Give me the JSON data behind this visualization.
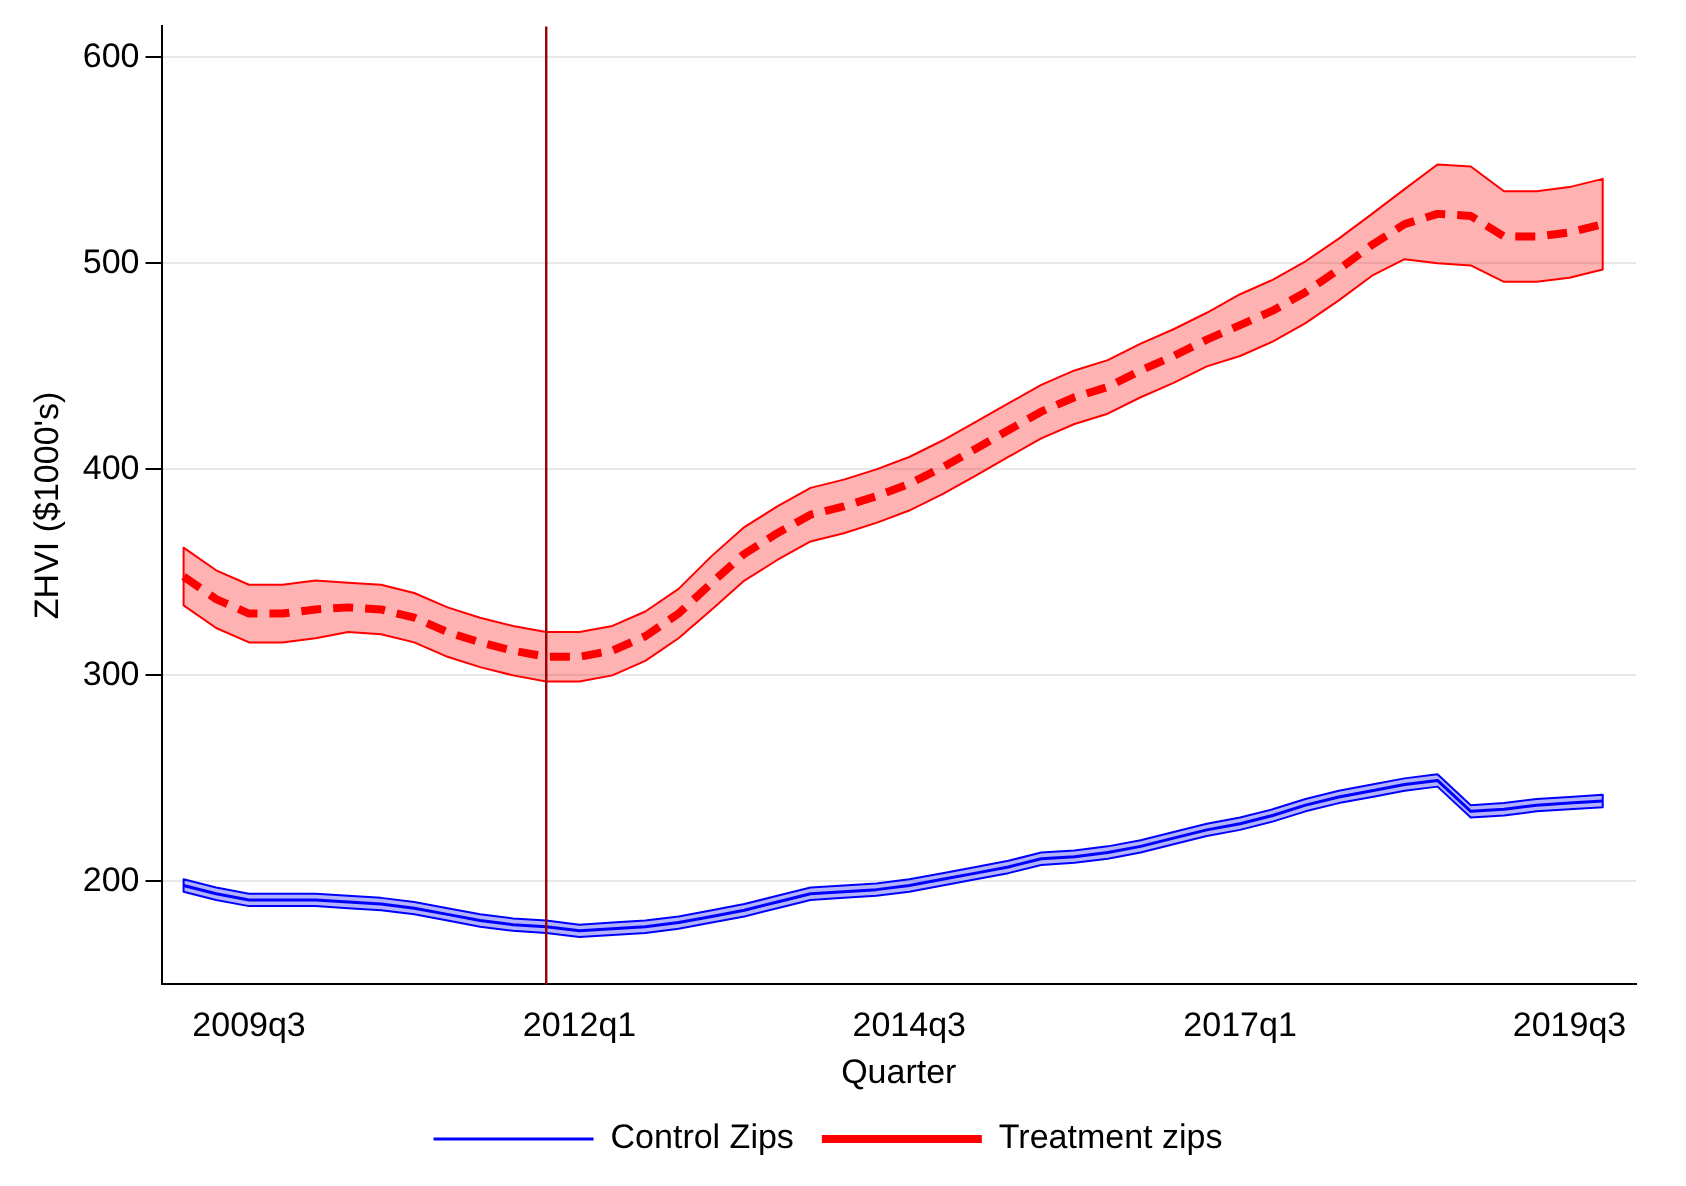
{
  "chart_data": {
    "type": "line",
    "xlabel": "Quarter",
    "ylabel": "ZHVI ($1000's)",
    "x": [
      "2009-01",
      "2009-04",
      "2009-07",
      "2009-10",
      "2010-01",
      "2010-04",
      "2010-07",
      "2010-10",
      "2011-01",
      "2011-04",
      "2011-07",
      "2011-10",
      "2012-01",
      "2012-04",
      "2012-07",
      "2012-10",
      "2013-01",
      "2013-04",
      "2013-07",
      "2013-10",
      "2014-01",
      "2014-04",
      "2014-07",
      "2014-10",
      "2015-01",
      "2015-04",
      "2015-07",
      "2015-10",
      "2016-01",
      "2016-04",
      "2016-07",
      "2016-10",
      "2017-01",
      "2017-04",
      "2017-07",
      "2017-10",
      "2018-01",
      "2018-04",
      "2018-07",
      "2018-10",
      "2019-01",
      "2019-04",
      "2019-07",
      "2019-10"
    ],
    "series": [
      {
        "name": "Control Zips",
        "color": "#0000ff",
        "line_style": "solid",
        "values": [
          198,
          194,
          191,
          191,
          191,
          190,
          189,
          187,
          184,
          181,
          179,
          178,
          176,
          177,
          178,
          180,
          183,
          186,
          190,
          194,
          195,
          196,
          198,
          201,
          204,
          207,
          211,
          212,
          214,
          217,
          221,
          225,
          228,
          232,
          237,
          241,
          244,
          247,
          249,
          234,
          235,
          237,
          238,
          239
        ],
        "lower": [
          195,
          191,
          188,
          188,
          188,
          187,
          186,
          184,
          181,
          178,
          176,
          175,
          173,
          174,
          175,
          177,
          180,
          183,
          187,
          191,
          192,
          193,
          195,
          198,
          201,
          204,
          208,
          209,
          211,
          214,
          218,
          222,
          225,
          229,
          234,
          238,
          241,
          244,
          246,
          231,
          232,
          234,
          235,
          236
        ],
        "upper": [
          201,
          197,
          194,
          194,
          194,
          193,
          192,
          190,
          187,
          184,
          182,
          181,
          179,
          180,
          181,
          183,
          186,
          189,
          193,
          197,
          198,
          199,
          201,
          204,
          207,
          210,
          214,
          215,
          217,
          220,
          224,
          228,
          231,
          235,
          240,
          244,
          247,
          250,
          252,
          237,
          238,
          240,
          241,
          242
        ]
      },
      {
        "name": "Treatment zips",
        "color": "#ff0000",
        "line_style": "dashed",
        "values": [
          348,
          337,
          330,
          330,
          332,
          333,
          332,
          328,
          321,
          316,
          312,
          309,
          309,
          312,
          319,
          330,
          345,
          359,
          369,
          378,
          382,
          387,
          393,
          401,
          410,
          419,
          428,
          435,
          440,
          448,
          455,
          463,
          470,
          477,
          486,
          497,
          509,
          519,
          524,
          523,
          513,
          513,
          515,
          519
        ],
        "lower": [
          334,
          323,
          316,
          316,
          318,
          321,
          320,
          316,
          309,
          304,
          300,
          297,
          297,
          300,
          307,
          318,
          332,
          346,
          356,
          365,
          369,
          374,
          380,
          388,
          397,
          406,
          415,
          422,
          427,
          435,
          442,
          450,
          455,
          462,
          471,
          482,
          494,
          502,
          500,
          499,
          491,
          491,
          493,
          497
        ],
        "upper": [
          362,
          351,
          344,
          344,
          346,
          345,
          344,
          340,
          333,
          328,
          324,
          321,
          321,
          324,
          331,
          342,
          358,
          372,
          382,
          391,
          395,
          400,
          406,
          414,
          423,
          432,
          441,
          448,
          453,
          461,
          468,
          476,
          485,
          492,
          501,
          512,
          524,
          536,
          548,
          547,
          535,
          535,
          537,
          541
        ]
      }
    ],
    "xlim": [
      "2008-11",
      "2020-01"
    ],
    "xticks": [
      {
        "value": "2009-07",
        "label": "2009q3"
      },
      {
        "value": "2012-01",
        "label": "2012q1"
      },
      {
        "value": "2014-07",
        "label": "2014q3"
      },
      {
        "value": "2017-01",
        "label": "2017q1"
      },
      {
        "value": "2019-07",
        "label": "2019q3"
      }
    ],
    "ylim": [
      150,
      615
    ],
    "yticks": [
      200,
      300,
      400,
      500,
      600
    ],
    "ref_lines": [
      {
        "axis": "x",
        "value": "2011-10",
        "color": "#990000"
      }
    ],
    "grid": "y",
    "legend": "bottom"
  }
}
